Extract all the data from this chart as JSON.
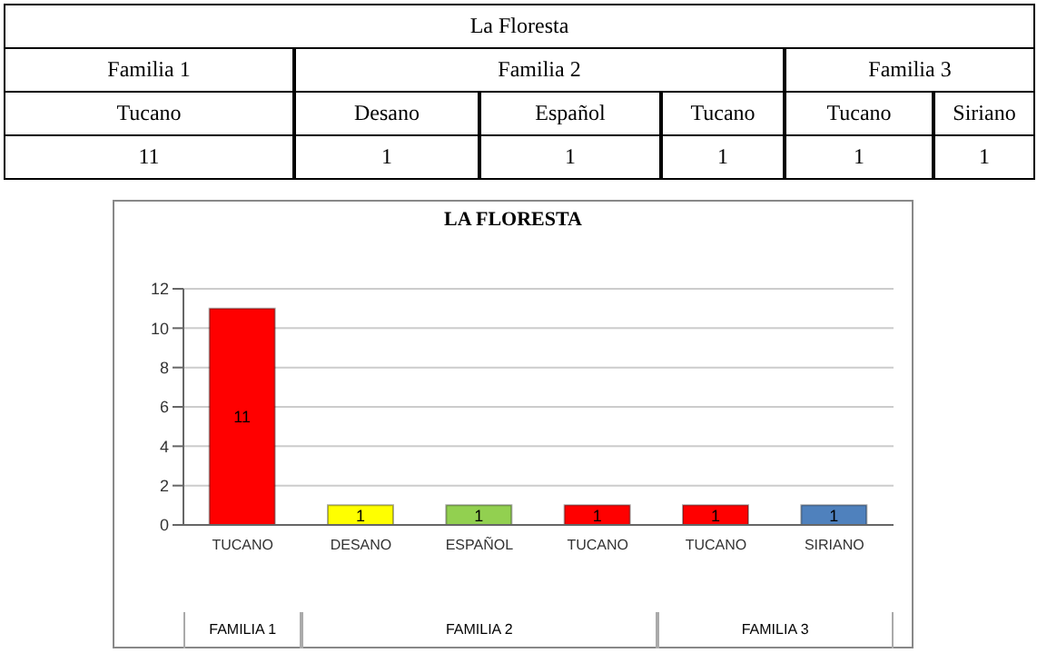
{
  "chart_data": [
    {
      "type": "other",
      "title": "La Floresta",
      "annotations": [
        "Familia 1",
        "Familia 2",
        "Familia 3",
        "Tucano",
        "Desano",
        "Español",
        "Tucano",
        "Tucano",
        "Siriano",
        "11",
        "1",
        "1",
        "1",
        "1",
        "1"
      ]
    },
    {
      "type": "bar",
      "title": "LA FLORESTA",
      "categories": [
        "TUCANO",
        "DESANO",
        "ESPAÑOL",
        "TUCANO",
        "TUCANO",
        "SIRIANO"
      ],
      "values": [
        11,
        1,
        1,
        1,
        1,
        1
      ],
      "colors": [
        "#ff0000",
        "#ffff00",
        "#92d050",
        "#ff0000",
        "#ff0000",
        "#4f81bd"
      ],
      "ylim": [
        0,
        12
      ],
      "yticks": [
        0,
        2,
        4,
        6,
        8,
        10,
        12
      ],
      "grid": "y",
      "data_labels": true,
      "annotations": [
        "FAMILIA 1",
        "FAMILIA 2",
        "FAMILIA 3"
      ]
    }
  ]
}
